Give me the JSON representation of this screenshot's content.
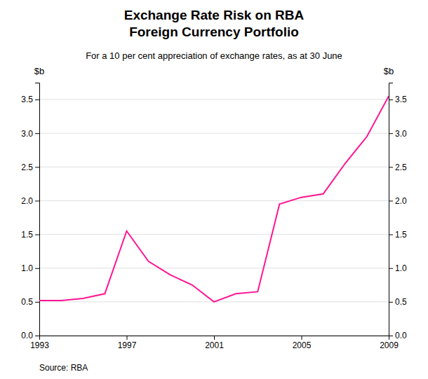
{
  "chart_data": {
    "type": "line",
    "title": [
      "Exchange Rate Risk on RBA",
      "Foreign Currency Portfolio"
    ],
    "subtitle": "For a 10 per cent appreciation of exchange rates, as at 30 June",
    "y_label": "$b",
    "y2_label": "$b",
    "source": "Source: RBA",
    "color": "#FF1493",
    "x": [
      1993,
      1994,
      1995,
      1996,
      1997,
      1998,
      1999,
      2000,
      2001,
      2002,
      2003,
      2004,
      2005,
      2006,
      2007,
      2008,
      2009
    ],
    "values": [
      0.52,
      0.52,
      0.55,
      0.62,
      1.55,
      1.1,
      0.9,
      0.75,
      0.5,
      0.62,
      0.65,
      1.95,
      2.05,
      2.1,
      2.55,
      2.95,
      3.55
    ],
    "xlim": [
      1993,
      2009
    ],
    "xticks": [
      1993,
      1997,
      2001,
      2005,
      2009
    ],
    "ylim": [
      0.0,
      3.75
    ],
    "yticks": [
      {
        "value": 0.0,
        "label": "0.0"
      },
      0.5,
      {
        "value": 1.0,
        "label": "1.0"
      },
      1.5,
      {
        "value": 2.0,
        "label": "2.0"
      },
      2.5,
      {
        "value": 3.0,
        "label": "3.0"
      },
      3.5
    ],
    "y2lim": [
      0.0,
      3.75
    ],
    "y2ticks": [
      {
        "value": 0.0,
        "label": "0.0"
      },
      0.5,
      {
        "value": 1.0,
        "label": "1.0"
      },
      1.5,
      {
        "value": 2.0,
        "label": "2.0"
      },
      2.5,
      {
        "value": 3.0,
        "label": "3.0"
      },
      3.5
    ],
    "grid": true
  }
}
